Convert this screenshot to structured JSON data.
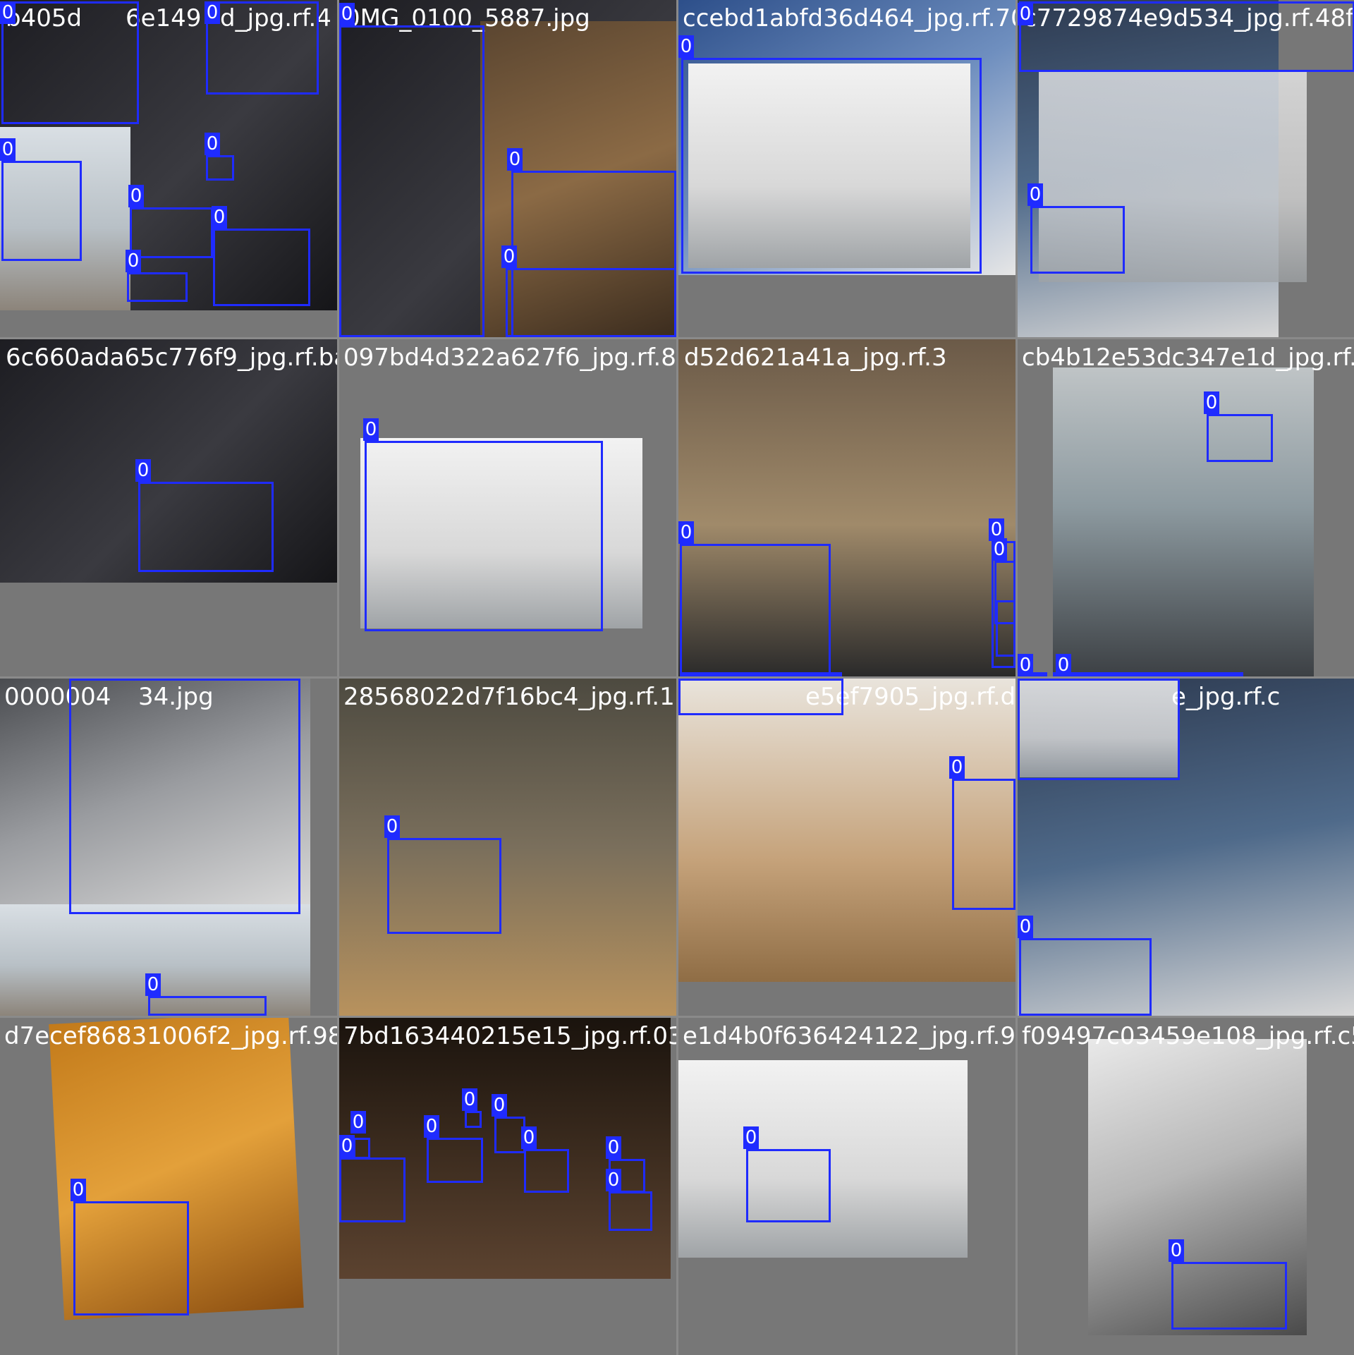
{
  "colors": {
    "box": "#1f2bff",
    "label_bg": "#1f2bff",
    "label_text": "#ffffff",
    "canvas": "#8a8a8a"
  },
  "tiles": [
    {
      "filenames": [
        "b405d",
        "6e149",
        "d_jpg.rf.4",
        "0"
      ],
      "class_label": "0",
      "box_count": 8
    },
    {
      "filenames": [
        "0MG_0100_5887.jpg"
      ],
      "class_label": "0",
      "box_count": 3
    },
    {
      "filenames": [
        "ccebd1abfd36d464_jpg.rf.70"
      ],
      "class_label": "0",
      "box_count": 1
    },
    {
      "filenames": [
        "c7729874e9d534_jpg.rf.48f"
      ],
      "class_label": "0",
      "box_count": 2
    },
    {
      "filenames": [
        "6c660ada65c776f9_jpg.rf.ba"
      ],
      "class_label": "0",
      "box_count": 1
    },
    {
      "filenames": [
        "097bd4d322a627f6_jpg.rf.80"
      ],
      "class_label": "0",
      "box_count": 1
    },
    {
      "filenames": [
        "d52d621a41a_jpg.rf.3"
      ],
      "class_label": "0",
      "box_count": 5
    },
    {
      "filenames": [
        "cb4b12e53dc347e1d_jpg.rf.1"
      ],
      "class_label": "0",
      "box_count": 4
    },
    {
      "filenames": [
        "0000004",
        "34.jpg"
      ],
      "class_label": "0",
      "box_count": 2
    },
    {
      "filenames": [
        "28568022d7f16bc4_jpg.rf.12"
      ],
      "class_label": "0",
      "box_count": 1
    },
    {
      "filenames": [
        "e5ef7905_jpg.rf.d1"
      ],
      "class_label": "0",
      "box_count": 2
    },
    {
      "filenames": [
        "e_jpg.rf.c"
      ],
      "class_label": "0",
      "box_count": 2
    },
    {
      "filenames": [
        "d7ecef86831006f2_jpg.rf.98"
      ],
      "class_label": "0",
      "box_count": 1
    },
    {
      "filenames": [
        "7bd163440215e15_jpg.rf.03"
      ],
      "class_label": "0",
      "box_count": 8
    },
    {
      "filenames": [
        "e1d4b0f636424122_jpg.rf.95"
      ],
      "class_label": "0",
      "box_count": 1
    },
    {
      "filenames": [
        "f09497c03459e108_jpg.rf.c5"
      ],
      "class_label": "0",
      "box_count": 1
    }
  ]
}
